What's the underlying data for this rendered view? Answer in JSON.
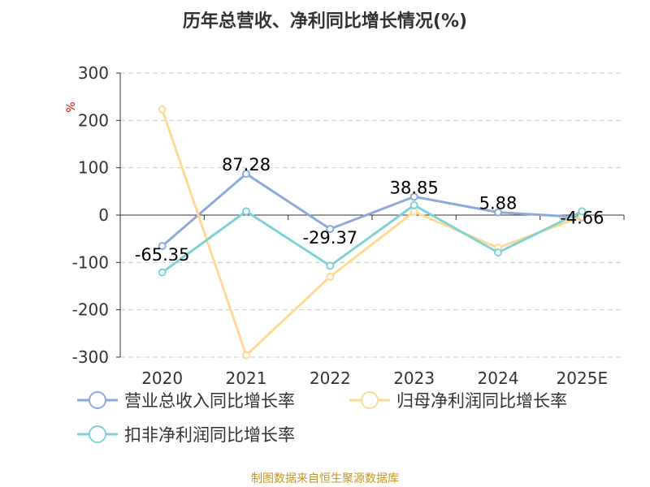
{
  "chart_data": {
    "type": "line",
    "title": "历年总营收、净利同比增长情况(%)",
    "ylabel": "%",
    "categories": [
      "2020",
      "2021",
      "2022",
      "2023",
      "2024",
      "2025E"
    ],
    "ylim": [
      -300,
      300
    ],
    "yticks": [
      300,
      200,
      100,
      0,
      -100,
      -200,
      -300
    ],
    "grid": true,
    "legend_position": "bottom",
    "series": [
      {
        "name": "营业总收入同比增长率",
        "color": "#8eaadb",
        "values": [
          -65.35,
          87.28,
          -29.37,
          38.85,
          5.88,
          -4.66
        ],
        "labels": [
          "-65.35",
          "87.28",
          "-29.37",
          "38.85",
          "5.88",
          "-4.66"
        ]
      },
      {
        "name": "归母净利润同比增长率",
        "color": "#ffd993",
        "values": [
          223,
          -296,
          -130,
          7,
          -69,
          -3
        ]
      },
      {
        "name": "扣非净利润同比增长率",
        "color": "#7fd3d6",
        "values": [
          -121,
          8,
          -107,
          21,
          -79,
          8
        ]
      }
    ]
  },
  "footer": {
    "source": "制图数据来自恒生聚源数据库"
  }
}
